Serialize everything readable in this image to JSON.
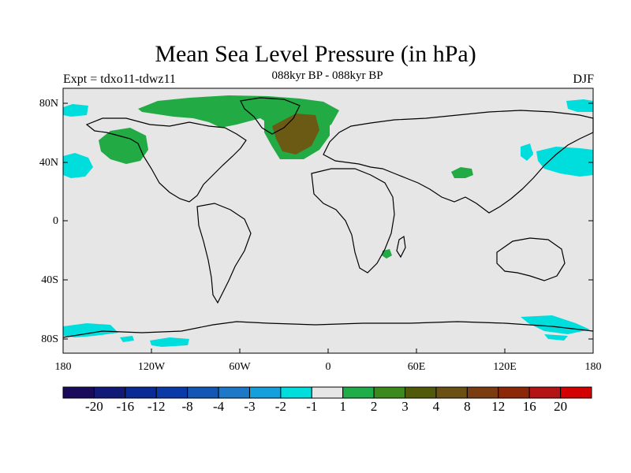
{
  "title": "Mean Sea Level Pressure (in hPa)",
  "left_label": "Expt = tdxo11-tdwz11",
  "center_label": "088kyr BP - 088kyr BP",
  "right_label": "DJF",
  "map": {
    "background_color": "#e6e6e6",
    "lon_range": [
      -180,
      180
    ],
    "lat_range": [
      -90,
      90
    ],
    "y_ticks": [
      "80N",
      "40N",
      "0",
      "40S",
      "80S"
    ],
    "x_ticks": [
      "180",
      "120W",
      "60W",
      "0",
      "60E",
      "120E",
      "180"
    ],
    "anomaly_regions": [
      {
        "name": "north-atlantic-positive",
        "level": "4",
        "color": "#6b5a14"
      },
      {
        "name": "arctic-greenland-positive",
        "level": "1-2",
        "color": "#22aa44"
      },
      {
        "name": "north-pacific-positive",
        "level": "1-2",
        "color": "#22aa44"
      },
      {
        "name": "central-asia-positive",
        "level": "1-2",
        "color": "#22aa44"
      },
      {
        "name": "southeast-africa-positive",
        "level": "1-2",
        "color": "#22aa44"
      },
      {
        "name": "northwest-pacific-negative",
        "level": "-1 to -2",
        "color": "#00dddd"
      },
      {
        "name": "east-pacific-negative",
        "level": "-1 to -2",
        "color": "#00dddd"
      },
      {
        "name": "southern-ocean-negative",
        "level": "-1 to -2",
        "color": "#00dddd"
      }
    ]
  },
  "colorbar": {
    "colors": [
      "#1a0a5c",
      "#121a78",
      "#0a2a96",
      "#0a3aa8",
      "#1456b4",
      "#1e78c8",
      "#14a0dc",
      "#00dddd",
      "#e6e6e6",
      "#1ead48",
      "#3c8a1e",
      "#505a0a",
      "#6b5014",
      "#7a3c10",
      "#8c2808",
      "#b41414",
      "#d20000"
    ],
    "tick_labels": [
      "-20",
      "-16",
      "-12",
      "-8",
      "-4",
      "-3",
      "-2",
      "-1",
      "1",
      "2",
      "3",
      "4",
      "8",
      "12",
      "16",
      "20"
    ]
  }
}
